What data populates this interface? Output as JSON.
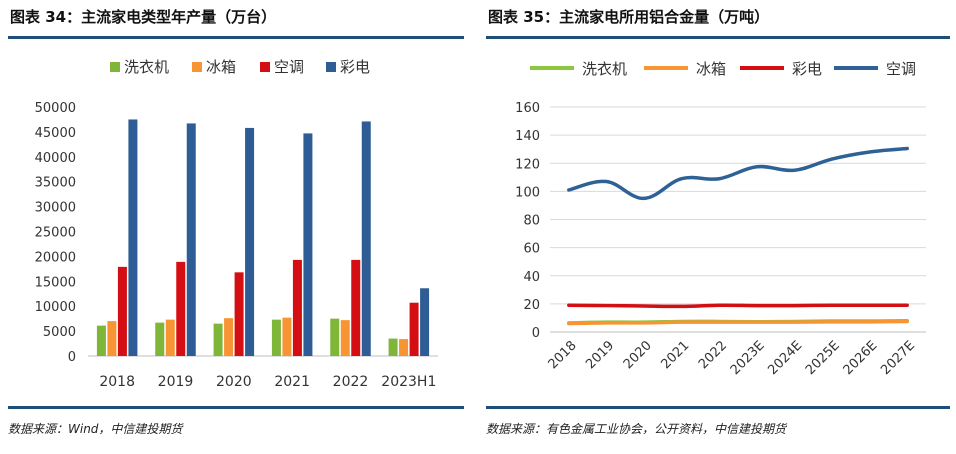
{
  "left": {
    "title": "图表 34：主流家电类型年产量（万台）",
    "source": "数据来源：Wind，中信建投期货"
  },
  "right": {
    "title": "图表 35：主流家电所用铝合金量（万吨）",
    "source": "数据来源：有色金属工业协会，公开资料，中信建投期货"
  },
  "chart_data": [
    {
      "type": "bar",
      "title": "",
      "categories": [
        "2018",
        "2019",
        "2020",
        "2021",
        "2022",
        "2023H1"
      ],
      "series": [
        {
          "name": "洗衣机",
          "color": "#7fb539",
          "values": [
            6100,
            6700,
            6500,
            7300,
            7500,
            3500
          ]
        },
        {
          "name": "冰箱",
          "color": "#f79433",
          "values": [
            7000,
            7300,
            7600,
            7700,
            7200,
            3400
          ]
        },
        {
          "name": "空调",
          "color": "#d40f14",
          "values": [
            17900,
            18900,
            16800,
            19300,
            19300,
            10700
          ]
        },
        {
          "name": "彩电",
          "color": "#2e5d95",
          "values": [
            47500,
            46700,
            45800,
            44700,
            47100,
            13600
          ]
        }
      ],
      "ylim": [
        0,
        50000
      ],
      "yticks": [
        0,
        5000,
        10000,
        15000,
        20000,
        25000,
        30000,
        35000,
        40000,
        45000,
        50000
      ],
      "legend": "top",
      "grid": false
    },
    {
      "type": "line",
      "title": "",
      "categories": [
        "2018",
        "2019",
        "2020",
        "2021",
        "2022",
        "2023E",
        "2024E",
        "2025E",
        "2026E",
        "2027E"
      ],
      "series": [
        {
          "name": "洗衣机",
          "color": "#8dc63f",
          "values": [
            6.5,
            7.0,
            7.0,
            7.5,
            7.5,
            7.3,
            7.5,
            7.8,
            7.8,
            8.0
          ]
        },
        {
          "name": "冰箱",
          "color": "#f79433",
          "values": [
            6.0,
            6.5,
            6.5,
            7.0,
            7.0,
            7.0,
            7.0,
            7.2,
            7.2,
            7.5
          ]
        },
        {
          "name": "彩电",
          "color": "#d40f14",
          "values": [
            19,
            18.8,
            18.5,
            18.2,
            19,
            18.8,
            18.8,
            19,
            19,
            19
          ]
        },
        {
          "name": "空调",
          "color": "#2e6195",
          "values": [
            101,
            107,
            95,
            109,
            109,
            117.5,
            115,
            123,
            128,
            130.5
          ]
        }
      ],
      "ylim": [
        0,
        160
      ],
      "yticks": [
        0,
        20,
        40,
        60,
        80,
        100,
        120,
        140,
        160
      ],
      "legend": "top",
      "grid": true
    }
  ]
}
